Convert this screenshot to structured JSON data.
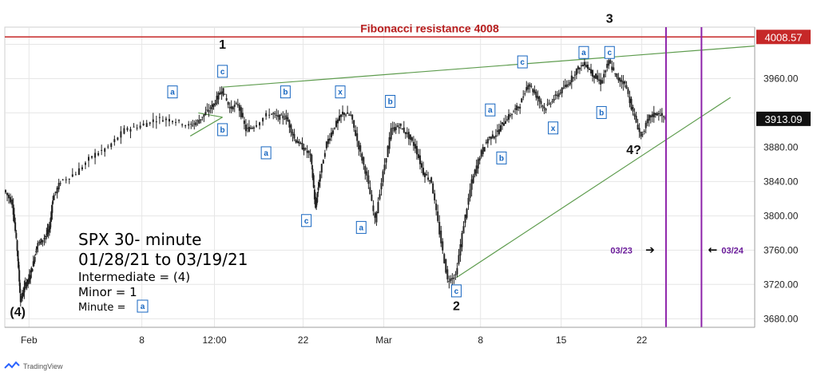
{
  "chart_data": {
    "type": "candlestick",
    "title": "SPX 30- minute",
    "subtitle": "01/28/21 to 03/19/21",
    "ylim": [
      3670,
      4020
    ],
    "yticks": [
      3680,
      3720,
      3760,
      3800,
      3840,
      3880,
      3920,
      3960,
      4000
    ],
    "ytick_labels": [
      "3680.00",
      "3720.00",
      "3760.00",
      "3800.00",
      "3840.00",
      "3880.00",
      "",
      "3960.00",
      ""
    ],
    "xticks": [
      {
        "label": "Feb",
        "x": 0
      },
      {
        "label": "8",
        "x": 7
      },
      {
        "label": "12:00",
        "x": 11.5
      },
      {
        "label": "22",
        "x": 17
      },
      {
        "label": "Mar",
        "x": 22
      },
      {
        "label": "8",
        "x": 28
      },
      {
        "label": "15",
        "x": 33
      },
      {
        "label": "22",
        "x": 38
      }
    ],
    "xlim": [
      -1.5,
      45
    ],
    "grid": true,
    "price_path": [
      [
        -1.5,
        3830
      ],
      [
        -1.0,
        3815
      ],
      [
        -0.7,
        3760
      ],
      [
        -0.5,
        3700
      ],
      [
        -0.2,
        3720
      ],
      [
        0.0,
        3725
      ],
      [
        0.3,
        3745
      ],
      [
        0.5,
        3765
      ],
      [
        1.0,
        3775
      ],
      [
        1.3,
        3785
      ],
      [
        1.5,
        3820
      ],
      [
        2.0,
        3840
      ],
      [
        3.0,
        3850
      ],
      [
        4.0,
        3870
      ],
      [
        5.0,
        3880
      ],
      [
        6.0,
        3900
      ],
      [
        7.0,
        3905
      ],
      [
        8.0,
        3913
      ],
      [
        9.0,
        3912
      ],
      [
        10.0,
        3905
      ],
      [
        10.5,
        3910
      ],
      [
        11.0,
        3920
      ],
      [
        11.5,
        3930
      ],
      [
        12.0,
        3948
      ],
      [
        12.5,
        3925
      ],
      [
        13.0,
        3930
      ],
      [
        13.5,
        3900
      ],
      [
        14.0,
        3905
      ],
      [
        15.0,
        3920
      ],
      [
        15.5,
        3915
      ],
      [
        16.0,
        3915
      ],
      [
        16.5,
        3890
      ],
      [
        17.0,
        3880
      ],
      [
        17.5,
        3870
      ],
      [
        17.8,
        3808
      ],
      [
        18.0,
        3840
      ],
      [
        18.5,
        3885
      ],
      [
        19.0,
        3905
      ],
      [
        19.5,
        3920
      ],
      [
        20.0,
        3917
      ],
      [
        20.5,
        3880
      ],
      [
        21.0,
        3845
      ],
      [
        21.5,
        3795
      ],
      [
        22.0,
        3850
      ],
      [
        22.5,
        3900
      ],
      [
        23.0,
        3905
      ],
      [
        23.5,
        3895
      ],
      [
        24.0,
        3880
      ],
      [
        24.5,
        3850
      ],
      [
        25.0,
        3840
      ],
      [
        25.5,
        3780
      ],
      [
        26.0,
        3725
      ],
      [
        26.5,
        3730
      ],
      [
        27.0,
        3790
      ],
      [
        27.5,
        3840
      ],
      [
        28.0,
        3870
      ],
      [
        28.5,
        3890
      ],
      [
        29.0,
        3895
      ],
      [
        29.5,
        3910
      ],
      [
        30.0,
        3920
      ],
      [
        30.5,
        3930
      ],
      [
        31.0,
        3955
      ],
      [
        31.5,
        3940
      ],
      [
        32.0,
        3925
      ],
      [
        32.5,
        3935
      ],
      [
        33.0,
        3945
      ],
      [
        33.5,
        3955
      ],
      [
        34.0,
        3970
      ],
      [
        34.5,
        3978
      ],
      [
        35.0,
        3965
      ],
      [
        35.5,
        3955
      ],
      [
        36.0,
        3980
      ],
      [
        36.5,
        3960
      ],
      [
        37.0,
        3955
      ],
      [
        37.5,
        3920
      ],
      [
        38.0,
        3892
      ],
      [
        38.5,
        3915
      ],
      [
        39.0,
        3920
      ],
      [
        39.5,
        3913
      ]
    ],
    "last_price": "3913.09",
    "resistance": {
      "value": 4008.57,
      "label": "Fibonacci resistance 4008",
      "badge": "4008.57"
    },
    "trendlines": [
      {
        "name": "upper-wedge-line",
        "from": [
          12.0,
          3950
        ],
        "to": [
          45.0,
          3998
        ]
      },
      {
        "name": "lower-wedge-line",
        "from": [
          26.5,
          3728
        ],
        "to": [
          43.5,
          3938
        ]
      },
      {
        "name": "short-b-line",
        "from": [
          10.0,
          3893
        ],
        "to": [
          12.0,
          3915
        ]
      },
      {
        "name": "short-a-arc",
        "from": [
          10.5,
          3920
        ],
        "to": [
          12.0,
          3915
        ]
      }
    ],
    "time_marks": [
      {
        "label": "03/23",
        "x": 39.5,
        "direction": "right"
      },
      {
        "label": "03/24",
        "x": 41.7,
        "direction": "left"
      }
    ],
    "wave_labels_major": [
      {
        "text": "(4)",
        "x": -0.7,
        "y": 3683
      },
      {
        "text": "1",
        "x": 12.0,
        "y": 3995
      },
      {
        "text": "2",
        "x": 26.5,
        "y": 3690
      },
      {
        "text": "3",
        "x": 36.0,
        "y": 4025
      },
      {
        "text": "4?",
        "x": 37.5,
        "y": 3872
      }
    ],
    "wave_labels_minute": [
      {
        "text": "c",
        "x": 12.0,
        "y": 3968
      },
      {
        "text": "a",
        "x": 8.9,
        "y": 3944
      },
      {
        "text": "b",
        "x": 12.0,
        "y": 3900
      },
      {
        "text": "a",
        "x": 14.7,
        "y": 3873
      },
      {
        "text": "b",
        "x": 15.9,
        "y": 3944
      },
      {
        "text": "x",
        "x": 19.3,
        "y": 3944
      },
      {
        "text": "c",
        "x": 17.2,
        "y": 3794
      },
      {
        "text": "a",
        "x": 20.6,
        "y": 3786
      },
      {
        "text": "b",
        "x": 22.4,
        "y": 3933
      },
      {
        "text": "c",
        "x": 26.5,
        "y": 3712
      },
      {
        "text": "a",
        "x": 28.6,
        "y": 3923
      },
      {
        "text": "b",
        "x": 29.3,
        "y": 3867
      },
      {
        "text": "c",
        "x": 30.6,
        "y": 3979
      },
      {
        "text": "x",
        "x": 32.5,
        "y": 3902
      },
      {
        "text": "a",
        "x": 34.4,
        "y": 3990
      },
      {
        "text": "c",
        "x": 36.0,
        "y": 3990
      },
      {
        "text": "b",
        "x": 35.5,
        "y": 3920
      }
    ]
  },
  "info": {
    "line1": "SPX 30- minute",
    "line2": "01/28/21 to 03/19/21",
    "line3": "Intermediate = (4)",
    "line4": "Minor = 1",
    "line5_text": "Minute  = ",
    "line5_box": "a"
  },
  "branding": {
    "name": "TradingView"
  },
  "colors": {
    "candle": "#222222",
    "resistance": "#c62828",
    "trendline": "#5e9c4e",
    "time_mark": "#8e24aa",
    "wave_box": "#1565c0",
    "grid": "#e6e6e6"
  }
}
